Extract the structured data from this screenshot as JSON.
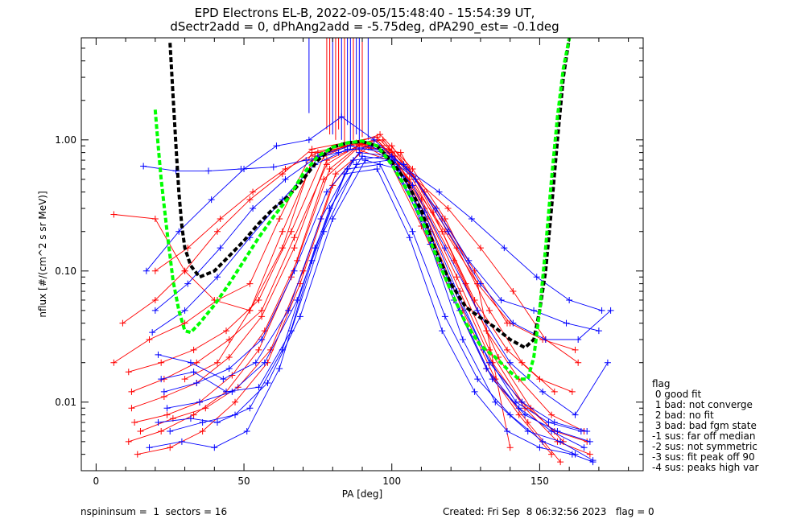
{
  "title_line1": "EPD Electrons EL-B, 2022-09-05/15:48:40 - 15:54:39 UT,",
  "title_line2": "dSectr2add = 0, dPhAng2add = -5.75deg, dPA290_est=  -0.1deg",
  "footer": {
    "left": "nspininsum =  1  sectors = 16",
    "right": "Created: Fri Sep  8 06:32:56 2023   flag = 0"
  },
  "legend": {
    "title": "flag",
    "items": [
      " 0 good fit",
      " 1 bad: not converge",
      " 2 bad: no fit",
      " 3 bad: bad fgm state",
      "-1 sus: far off median",
      "-2 sus: not symmetric",
      "-3 sus: fit peak off 90",
      "-4 sus: peaks high var"
    ]
  },
  "colors": {
    "red": "#ff0000",
    "blue": "#0000ff",
    "black": "#000000",
    "green": "#00ff00"
  },
  "chart_data": {
    "type": "line",
    "xlabel": "PA [deg]",
    "ylabel": "nflux [#/(cm^2 s sr MeV)]",
    "xlim": [
      -5,
      185
    ],
    "ylim": [
      0.003,
      6.0
    ],
    "yscale": "log",
    "xticks": [
      0,
      50,
      100,
      150
    ],
    "xtick_labels": [
      "0",
      "50",
      "100",
      "150"
    ],
    "yticks": [
      0.01,
      0.1,
      1.0
    ],
    "ytick_labels": [
      "0.01",
      "0.10",
      "1.00"
    ],
    "series": [
      {
        "color": "red",
        "x": [
          6,
          20,
          30,
          40,
          52,
          63,
          73,
          84,
          95,
          106,
          118,
          129,
          140,
          151,
          162
        ],
        "y": [
          0.27,
          0.25,
          0.1,
          0.06,
          0.05,
          0.15,
          0.7,
          0.9,
          1.0,
          0.5,
          0.2,
          0.08,
          0.04,
          0.03,
          0.025
        ]
      },
      {
        "color": "red",
        "x": [
          9,
          20,
          30,
          41,
          52,
          63,
          73,
          84,
          95,
          106,
          117,
          128,
          139
        ],
        "y": [
          0.04,
          0.06,
          0.1,
          0.2,
          0.35,
          0.55,
          0.85,
          0.95,
          1.05,
          0.6,
          0.25,
          0.1,
          0.04
        ]
      },
      {
        "color": "red",
        "x": [
          6,
          18,
          30,
          41,
          52,
          62,
          73,
          84,
          95,
          106,
          117,
          128,
          139,
          150,
          161
        ],
        "y": [
          0.02,
          0.03,
          0.04,
          0.06,
          0.08,
          0.25,
          0.8,
          0.9,
          1.0,
          0.55,
          0.2,
          0.06,
          0.025,
          0.015,
          0.012
        ]
      },
      {
        "color": "red",
        "x": [
          11,
          22,
          33,
          44,
          55,
          66,
          77,
          88,
          99,
          110,
          121,
          132,
          143,
          154,
          165
        ],
        "y": [
          0.017,
          0.02,
          0.025,
          0.035,
          0.06,
          0.2,
          0.75,
          0.95,
          0.85,
          0.35,
          0.12,
          0.035,
          0.015,
          0.008,
          0.006
        ]
      },
      {
        "color": "red",
        "x": [
          12,
          23,
          34,
          45,
          56,
          67,
          78,
          89,
          100,
          111,
          122,
          133,
          144,
          155,
          166
        ],
        "y": [
          0.009,
          0.011,
          0.014,
          0.022,
          0.045,
          0.15,
          0.7,
          0.9,
          0.8,
          0.3,
          0.09,
          0.025,
          0.01,
          0.006,
          0.005
        ]
      },
      {
        "color": "red",
        "x": [
          13,
          24,
          35,
          46,
          57,
          68,
          79,
          90,
          101,
          112,
          123,
          134,
          145,
          156,
          167
        ],
        "y": [
          0.007,
          0.008,
          0.01,
          0.016,
          0.035,
          0.12,
          0.6,
          0.95,
          0.75,
          0.25,
          0.07,
          0.02,
          0.009,
          0.005,
          0.004
        ]
      },
      {
        "color": "red",
        "x": [
          11,
          22,
          33,
          44,
          55,
          66,
          77,
          88,
          99,
          110,
          121,
          132,
          143,
          154
        ],
        "y": [
          0.005,
          0.006,
          0.008,
          0.012,
          0.025,
          0.09,
          0.5,
          0.85,
          0.7,
          0.22,
          0.06,
          0.018,
          0.008,
          0.004
        ]
      },
      {
        "color": "red",
        "x": [
          14,
          25,
          36,
          47,
          58,
          69,
          80,
          91,
          102,
          113,
          124,
          135,
          146,
          157
        ],
        "y": [
          0.004,
          0.0045,
          0.006,
          0.01,
          0.02,
          0.08,
          0.45,
          0.9,
          0.65,
          0.2,
          0.05,
          0.015,
          0.007,
          0.0035
        ]
      },
      {
        "color": "red",
        "x": [
          12,
          23,
          34,
          45,
          56,
          67,
          78,
          89,
          100,
          111,
          122,
          133,
          144,
          155
        ],
        "y": [
          0.012,
          0.015,
          0.02,
          0.03,
          0.05,
          0.18,
          0.65,
          0.92,
          0.9,
          0.4,
          0.15,
          0.05,
          0.02,
          0.012
        ]
      },
      {
        "color": "red",
        "x": [
          15,
          26,
          37,
          48,
          59,
          70,
          81,
          92,
          103,
          114,
          125,
          136,
          147,
          158
        ],
        "y": [
          0.006,
          0.0075,
          0.009,
          0.013,
          0.025,
          0.1,
          0.55,
          0.88,
          0.8,
          0.28,
          0.08,
          0.022,
          0.009,
          0.005
        ]
      },
      {
        "color": "red",
        "x": [
          20,
          31,
          42,
          53,
          64,
          75,
          86,
          97,
          108,
          119,
          130,
          141,
          152,
          163
        ],
        "y": [
          0.1,
          0.15,
          0.25,
          0.4,
          0.6,
          0.8,
          0.9,
          1.0,
          0.5,
          0.3,
          0.15,
          0.07,
          0.03,
          0.02
        ]
      },
      {
        "color": "red",
        "x": [
          30,
          41,
          52,
          63,
          74,
          85,
          96,
          107,
          118,
          129,
          140
        ],
        "y": [
          0.015,
          0.02,
          0.05,
          0.2,
          0.75,
          0.9,
          1.1,
          0.6,
          0.25,
          0.08,
          0.0045
        ]
      },
      {
        "color": "blue",
        "x": [
          16,
          27,
          38,
          49,
          60,
          71,
          82,
          93,
          104,
          115,
          126,
          137,
          148,
          159,
          170
        ],
        "y": [
          0.63,
          0.58,
          0.58,
          0.6,
          0.62,
          0.7,
          0.8,
          0.9,
          0.65,
          0.3,
          0.12,
          0.06,
          0.05,
          0.04,
          0.035
        ]
      },
      {
        "color": "blue",
        "x": [
          17,
          28,
          39,
          50,
          61,
          72,
          83,
          94,
          105,
          116,
          127,
          138,
          149,
          160,
          171
        ],
        "y": [
          0.1,
          0.2,
          0.35,
          0.6,
          0.9,
          1.0,
          1.5,
          1.0,
          0.6,
          0.4,
          0.25,
          0.15,
          0.09,
          0.06,
          0.05
        ]
      },
      {
        "color": "blue",
        "x": [
          20,
          31,
          42,
          53,
          64,
          75,
          86,
          97,
          108,
          119,
          130,
          141,
          152,
          163,
          174
        ],
        "y": [
          0.05,
          0.08,
          0.15,
          0.3,
          0.5,
          0.75,
          0.9,
          0.8,
          0.5,
          0.2,
          0.08,
          0.04,
          0.03,
          0.03,
          0.05
        ]
      },
      {
        "color": "blue",
        "x": [
          19,
          30,
          41,
          52,
          63,
          74,
          85,
          96,
          107,
          118,
          129,
          140,
          151,
          162,
          173
        ],
        "y": [
          0.034,
          0.05,
          0.09,
          0.18,
          0.35,
          0.65,
          0.85,
          0.85,
          0.45,
          0.15,
          0.05,
          0.02,
          0.012,
          0.008,
          0.02
        ]
      },
      {
        "color": "blue",
        "x": [
          21,
          32,
          43,
          54,
          65,
          76,
          87,
          98,
          109,
          120,
          131,
          142,
          153,
          164
        ],
        "y": [
          0.023,
          0.02,
          0.015,
          0.02,
          0.05,
          0.25,
          0.7,
          0.75,
          0.3,
          0.08,
          0.025,
          0.01,
          0.007,
          0.006
        ]
      },
      {
        "color": "blue",
        "x": [
          22,
          33,
          44,
          55,
          66,
          77,
          88,
          99,
          110,
          121,
          132,
          143,
          154,
          165
        ],
        "y": [
          0.015,
          0.017,
          0.012,
          0.013,
          0.035,
          0.2,
          0.65,
          0.7,
          0.25,
          0.06,
          0.018,
          0.009,
          0.006,
          0.0045
        ]
      },
      {
        "color": "blue",
        "x": [
          21,
          32,
          41,
          52,
          63,
          74,
          85,
          96,
          107,
          118,
          129,
          140,
          151,
          162
        ],
        "y": [
          0.007,
          0.0075,
          0.007,
          0.009,
          0.025,
          0.15,
          0.6,
          0.65,
          0.2,
          0.045,
          0.015,
          0.008,
          0.005,
          0.004
        ]
      },
      {
        "color": "blue",
        "x": [
          18,
          29,
          40,
          51,
          62,
          73,
          84,
          95,
          106,
          117,
          128,
          139,
          150,
          161,
          168
        ],
        "y": [
          0.0045,
          0.005,
          0.0045,
          0.006,
          0.018,
          0.12,
          0.55,
          0.6,
          0.18,
          0.035,
          0.012,
          0.006,
          0.0045,
          0.004,
          0.0035
        ]
      },
      {
        "color": "blue",
        "x": [
          24,
          35,
          46,
          57,
          68,
          79,
          90,
          101,
          112,
          123,
          134,
          145,
          156,
          167
        ],
        "y": [
          0.009,
          0.01,
          0.012,
          0.02,
          0.06,
          0.3,
          0.75,
          0.7,
          0.22,
          0.05,
          0.015,
          0.008,
          0.006,
          0.005
        ]
      },
      {
        "color": "blue",
        "x": [
          23,
          34,
          45,
          56,
          67,
          78,
          89,
          100,
          111,
          122,
          133,
          144,
          155,
          166
        ],
        "y": [
          0.012,
          0.014,
          0.018,
          0.03,
          0.1,
          0.4,
          0.8,
          0.75,
          0.28,
          0.07,
          0.02,
          0.01,
          0.007,
          0.006
        ]
      },
      {
        "color": "blue",
        "x": [
          25,
          36,
          47,
          58,
          69,
          80,
          91,
          102,
          113,
          124,
          135,
          146,
          157,
          168
        ],
        "y": [
          0.006,
          0.007,
          0.008,
          0.014,
          0.045,
          0.25,
          0.7,
          0.6,
          0.16,
          0.03,
          0.01,
          0.006,
          0.005,
          0.0036
        ]
      }
    ],
    "fits": [
      {
        "color": "black",
        "style": "dashed",
        "x": [
          25,
          26,
          27,
          28,
          29,
          30,
          32,
          35,
          40,
          45,
          50,
          55,
          60,
          65,
          70,
          75,
          80,
          85,
          90,
          95,
          100,
          105,
          110,
          115,
          120,
          125,
          130,
          135,
          140,
          145,
          148,
          150,
          152,
          154,
          156,
          158,
          160
        ],
        "y": [
          5.5,
          2.2,
          0.9,
          0.4,
          0.22,
          0.15,
          0.11,
          0.09,
          0.1,
          0.13,
          0.17,
          0.23,
          0.3,
          0.37,
          0.5,
          0.7,
          0.88,
          0.95,
          0.97,
          0.9,
          0.68,
          0.48,
          0.29,
          0.14,
          0.08,
          0.053,
          0.044,
          0.037,
          0.03,
          0.026,
          0.03,
          0.05,
          0.1,
          0.3,
          1.0,
          3.0,
          6.0
        ]
      },
      {
        "color": "green",
        "style": "dashed",
        "x": [
          20,
          21,
          22,
          24,
          26,
          28,
          30,
          32,
          35,
          40,
          45,
          50,
          55,
          60,
          65,
          70,
          75,
          80,
          85,
          90,
          95,
          100,
          105,
          110,
          115,
          120,
          125,
          130,
          135,
          140,
          143,
          146,
          148,
          150,
          152,
          154,
          156,
          158,
          160
        ],
        "y": [
          1.7,
          0.9,
          0.5,
          0.2,
          0.085,
          0.05,
          0.035,
          0.034,
          0.04,
          0.055,
          0.08,
          0.12,
          0.18,
          0.26,
          0.36,
          0.55,
          0.75,
          0.88,
          0.95,
          0.98,
          0.9,
          0.65,
          0.42,
          0.25,
          0.13,
          0.07,
          0.04,
          0.027,
          0.022,
          0.017,
          0.015,
          0.015,
          0.022,
          0.05,
          0.15,
          0.5,
          1.5,
          3.5,
          6.0
        ]
      }
    ],
    "verticals": {
      "color_pattern": [
        "blue",
        "red",
        "red",
        "blue",
        "red",
        "red",
        "blue",
        "red",
        "blue",
        "blue",
        "red",
        "blue",
        "blue",
        "red",
        "blue"
      ],
      "x": [
        72,
        78,
        79,
        80,
        81,
        82,
        83,
        84,
        85,
        86,
        87,
        88,
        89,
        90,
        92
      ],
      "y_bottom": [
        1.6,
        1.2,
        1.1,
        1.1,
        1.0,
        1.2,
        1.0,
        1.0,
        1.3,
        0.95,
        1.0,
        1.1,
        1.0,
        1.05,
        1.0
      ]
    }
  }
}
